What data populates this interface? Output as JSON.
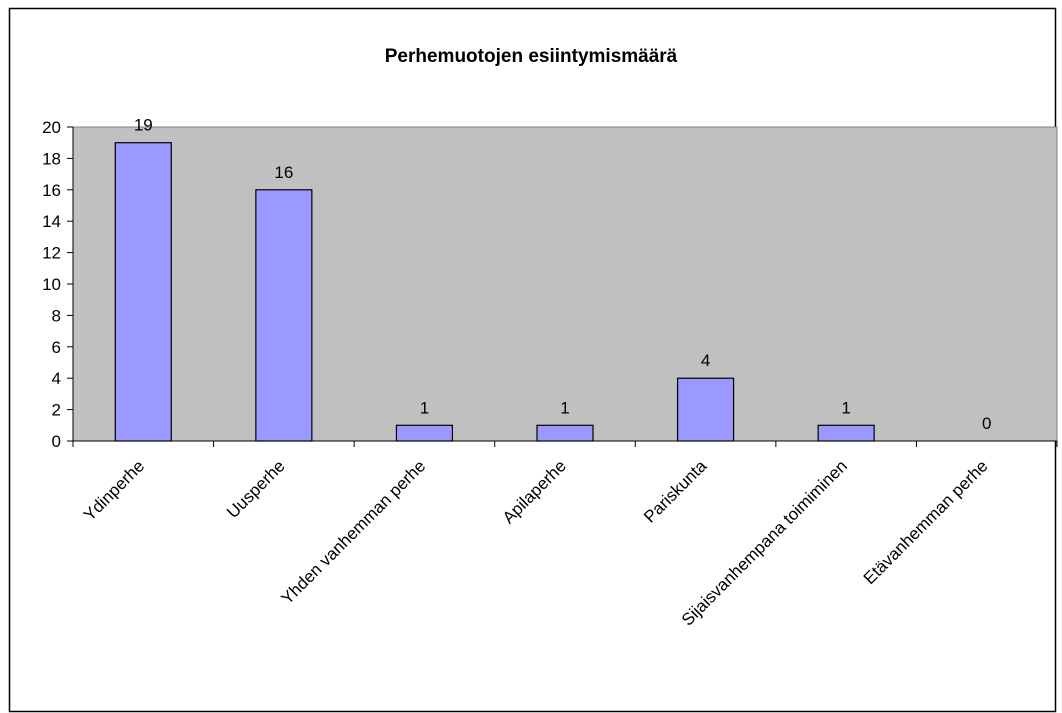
{
  "chart_data": {
    "type": "bar",
    "title": "Perhemuotojen esiintymismäärä",
    "categories": [
      "Ydinperhe",
      "Uusperhe",
      "Yhden vanhemman perhe",
      "Apilaperhe",
      "Pariskunta",
      "Sijaisvanhempana toimiminen",
      "Etävanhemman perhe"
    ],
    "values": [
      19,
      16,
      1,
      1,
      4,
      1,
      0
    ],
    "color": "#9999ff",
    "ylim": [
      0,
      20
    ],
    "yticks": [
      0,
      2,
      4,
      6,
      8,
      10,
      12,
      14,
      16,
      18,
      20
    ],
    "grid": false
  }
}
